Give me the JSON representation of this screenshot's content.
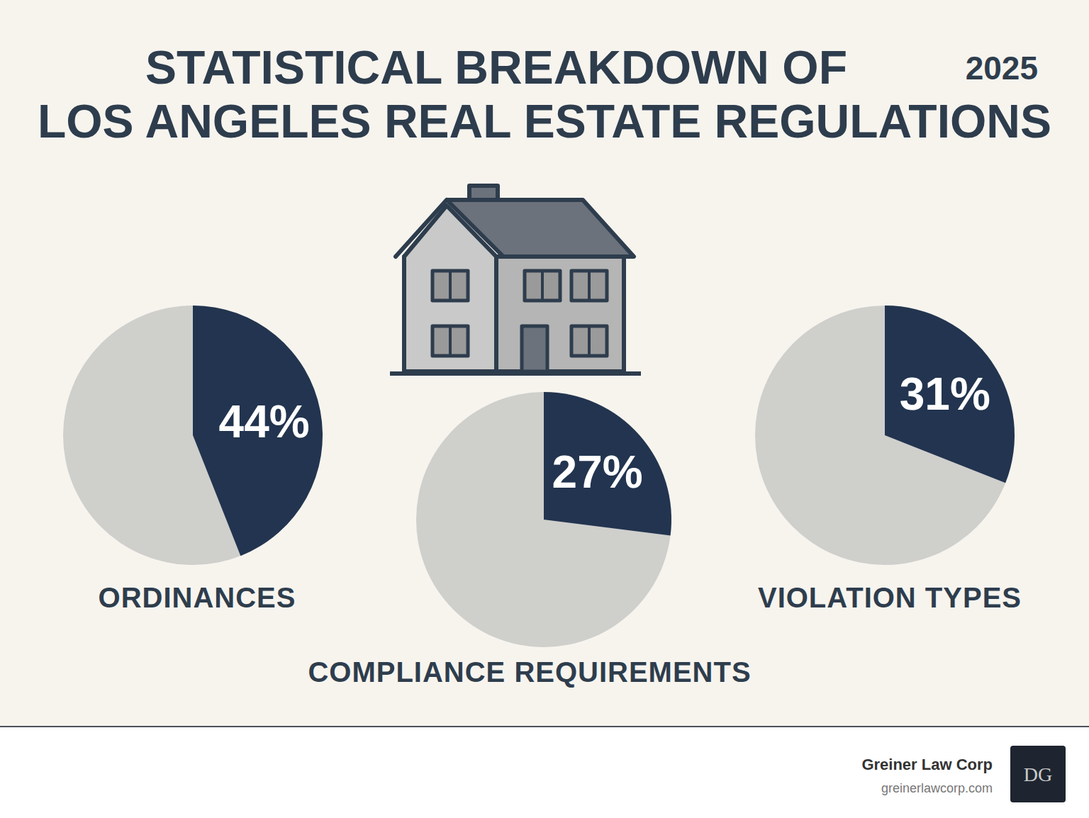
{
  "header": {
    "title": "STATISTICAL BREAKDOWN OF LOS ANGELES REAL ESTATE REGULATIONS",
    "year": "2025"
  },
  "chart_data": [
    {
      "type": "pie",
      "title": "ORDINANCES",
      "values": [
        44
      ],
      "value_labels": [
        "44%"
      ],
      "colors": [
        "#22344f"
      ],
      "data_labels": true
    },
    {
      "type": "pie",
      "title": "COMPLIANCE REQUIREMENTS",
      "values": [
        27
      ],
      "value_labels": [
        "27%"
      ],
      "colors": [
        "#22344f"
      ],
      "data_labels": true
    },
    {
      "type": "pie",
      "title": "VIOLATION TYPES",
      "values": [
        31
      ],
      "value_labels": [
        "31%"
      ],
      "colors": [
        "#22344f"
      ],
      "data_labels": true
    }
  ],
  "footer": {
    "company": "Greiner Law Corp",
    "url": "greinerlawcorp.com",
    "logo_text": "DG"
  }
}
